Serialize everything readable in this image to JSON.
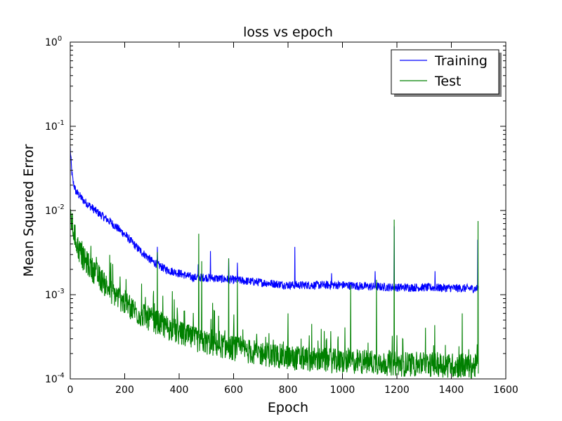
{
  "chart_data": {
    "type": "line",
    "title": "loss vs epoch",
    "xlabel": "Epoch",
    "ylabel": "Mean Squared Error",
    "xlim": [
      0,
      1600
    ],
    "ylim": [
      0.0001,
      1
    ],
    "yscale": "log",
    "grid": false,
    "legend": "top-right",
    "x_ticks": [
      "0",
      "200",
      "400",
      "600",
      "800",
      "1000",
      "1200",
      "1400",
      "1600"
    ],
    "y_ticks": [
      {
        "base": "10",
        "exp": "-4"
      },
      {
        "base": "10",
        "exp": "-3"
      },
      {
        "base": "10",
        "exp": "-2"
      },
      {
        "base": "10",
        "exp": "-1"
      },
      {
        "base": "10",
        "exp": "0"
      }
    ],
    "epochs": 1500,
    "series": [
      {
        "name": "Training",
        "color": "#0000ff",
        "anchors": [
          [
            0,
            0.055
          ],
          [
            5,
            0.03
          ],
          [
            10,
            0.022
          ],
          [
            20,
            0.017
          ],
          [
            50,
            0.013
          ],
          [
            100,
            0.0095
          ],
          [
            150,
            0.0072
          ],
          [
            200,
            0.0052
          ],
          [
            250,
            0.0035
          ],
          [
            300,
            0.0025
          ],
          [
            350,
            0.002
          ],
          [
            400,
            0.0018
          ],
          [
            450,
            0.0016
          ],
          [
            500,
            0.0016
          ],
          [
            600,
            0.0015
          ],
          [
            700,
            0.0014
          ],
          [
            800,
            0.0013
          ],
          [
            900,
            0.0013
          ],
          [
            1000,
            0.0013
          ],
          [
            1100,
            0.00125
          ],
          [
            1200,
            0.00122
          ],
          [
            1300,
            0.00122
          ],
          [
            1400,
            0.0012
          ],
          [
            1500,
            0.00118
          ]
        ],
        "spikes": [
          [
            320,
            0.0037
          ],
          [
            470,
            0.0023
          ],
          [
            515,
            0.0033
          ],
          [
            582,
            0.0027
          ],
          [
            614,
            0.0024
          ],
          [
            825,
            0.0037
          ],
          [
            960,
            0.0018
          ],
          [
            1120,
            0.0019
          ],
          [
            1190,
            0.0065
          ],
          [
            1340,
            0.0019
          ],
          [
            1497,
            0.0045
          ]
        ],
        "noise": 0.05
      },
      {
        "name": "Test",
        "color": "#008000",
        "anchors": [
          [
            0,
            0.009
          ],
          [
            10,
            0.006
          ],
          [
            30,
            0.0035
          ],
          [
            50,
            0.0026
          ],
          [
            100,
            0.0017
          ],
          [
            150,
            0.0011
          ],
          [
            200,
            0.0008
          ],
          [
            250,
            0.0006
          ],
          [
            300,
            0.0005
          ],
          [
            350,
            0.00042
          ],
          [
            400,
            0.00035
          ],
          [
            450,
            0.0003
          ],
          [
            500,
            0.00027
          ],
          [
            600,
            0.00023
          ],
          [
            700,
            0.0002
          ],
          [
            800,
            0.00018
          ],
          [
            900,
            0.00017
          ],
          [
            1000,
            0.00016
          ],
          [
            1100,
            0.00016
          ],
          [
            1200,
            0.00015
          ],
          [
            1300,
            0.00015
          ],
          [
            1400,
            0.000145
          ],
          [
            1500,
            0.00014
          ]
        ],
        "spikes": [
          [
            320,
            0.0032
          ],
          [
            375,
            0.0011
          ],
          [
            472,
            0.0053
          ],
          [
            483,
            0.0025
          ],
          [
            523,
            0.0008
          ],
          [
            582,
            0.0027
          ],
          [
            614,
            0.0015
          ],
          [
            800,
            0.0006
          ],
          [
            887,
            0.00045
          ],
          [
            1030,
            0.0013
          ],
          [
            1125,
            0.0015
          ],
          [
            1190,
            0.0078
          ],
          [
            1440,
            0.0006
          ],
          [
            1498,
            0.0075
          ]
        ],
        "noise": 0.15
      }
    ]
  }
}
